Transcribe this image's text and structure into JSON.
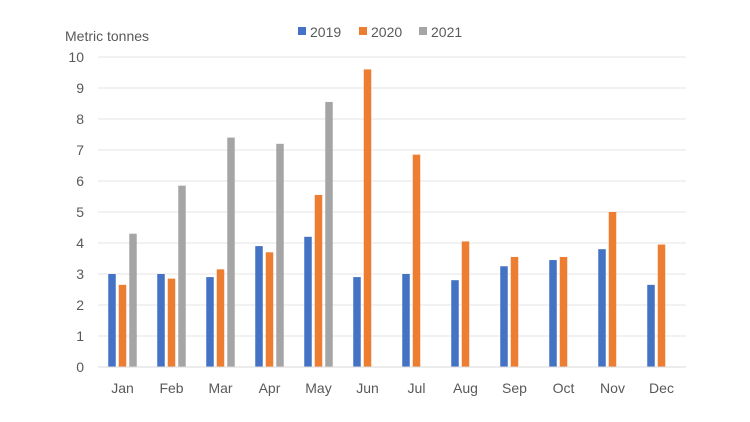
{
  "chart_data": {
    "type": "bar",
    "ylabel": "Metric tonnes",
    "ylim": [
      0,
      10
    ],
    "yticks": [
      "0",
      "1",
      "2",
      "3",
      "4",
      "5",
      "6",
      "7",
      "8",
      "9",
      "10"
    ],
    "grid": true,
    "legend_position": "top",
    "categories": [
      "Jan",
      "Feb",
      "Mar",
      "Apr",
      "May",
      "Jun",
      "Jul",
      "Aug",
      "Sep",
      "Oct",
      "Nov",
      "Dec"
    ],
    "series": [
      {
        "name": "2019",
        "color": "#4472c4",
        "values": [
          3.0,
          3.0,
          2.9,
          3.9,
          4.2,
          2.9,
          3.0,
          2.8,
          3.25,
          3.45,
          3.8,
          2.65
        ]
      },
      {
        "name": "2020",
        "color": "#ed7d31",
        "values": [
          2.65,
          2.85,
          3.15,
          3.7,
          5.55,
          9.6,
          6.85,
          4.05,
          3.55,
          3.55,
          5.0,
          3.95
        ]
      },
      {
        "name": "2021",
        "color": "#a5a5a5",
        "values": [
          4.3,
          5.85,
          7.4,
          7.2,
          8.55,
          null,
          null,
          null,
          null,
          null,
          null,
          null
        ]
      }
    ]
  }
}
